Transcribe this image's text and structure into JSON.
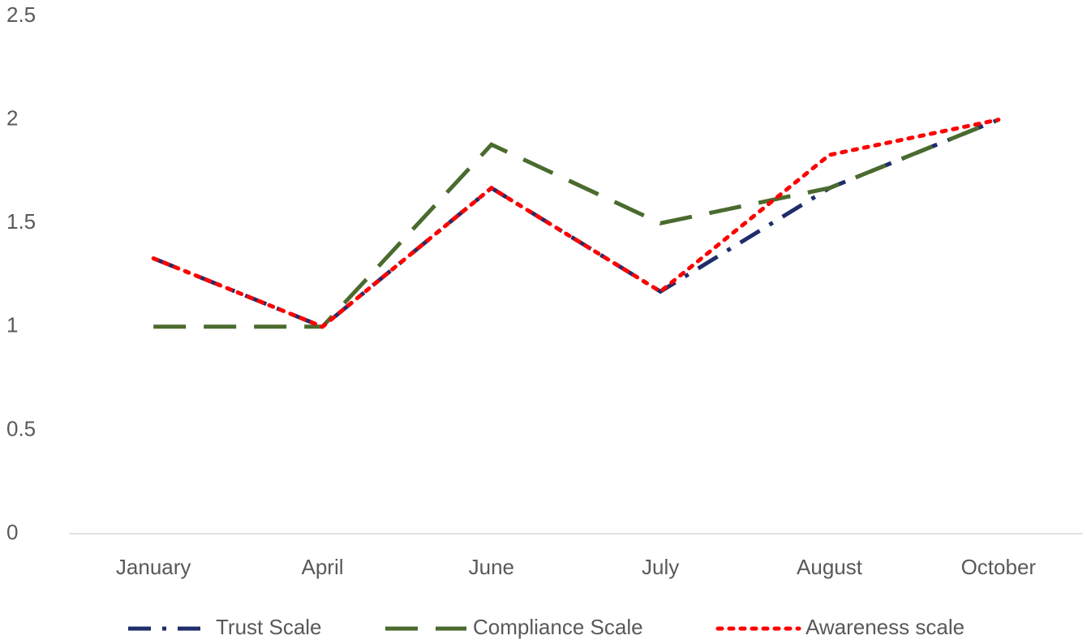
{
  "chart_data": {
    "type": "line",
    "categories": [
      "January",
      "April",
      "June",
      "July",
      "August",
      "October"
    ],
    "series": [
      {
        "name": "Trust Scale",
        "color": "#1f2d6b",
        "dash": "dash-dot",
        "values": [
          1.33,
          1,
          1.67,
          1.17,
          1.67,
          2
        ]
      },
      {
        "name": "Compliance Scale",
        "color": "#4a6b2e",
        "dash": "dash",
        "values": [
          1,
          1,
          1.88,
          1.5,
          1.67,
          2
        ]
      },
      {
        "name": "Awareness scale",
        "color": "#ff0000",
        "dash": "dot",
        "values": [
          1.33,
          1,
          1.67,
          1.17,
          1.83,
          2
        ]
      }
    ],
    "ylim": [
      0,
      2.5
    ],
    "yticks": [
      0,
      0.5,
      1,
      1.5,
      2,
      2.5
    ],
    "grid": false,
    "legend": "bottom"
  }
}
